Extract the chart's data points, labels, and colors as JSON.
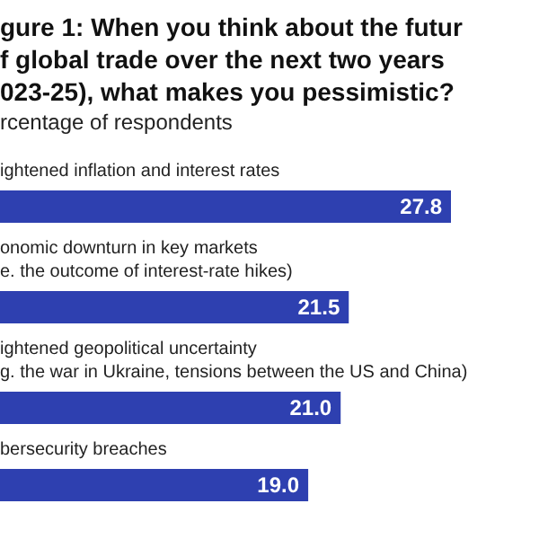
{
  "chart_data": {
    "type": "bar",
    "orientation": "horizontal",
    "title": "gure 1: When you think about the futur\nf global trade over the next two years\n023-25), what makes you pessimistic?",
    "subtitle": "rcentage of respondents",
    "categories": [
      "ightened inflation and interest rates",
      "onomic downturn in key markets\ne. the outcome of interest-rate hikes)",
      "ightened geopolitical uncertainty\ng. the war in Ukraine, tensions between the US and China)",
      "bersecurity breaches"
    ],
    "values": [
      27.8,
      21.5,
      21.0,
      19.0
    ],
    "value_labels": [
      "27.8",
      "21.5",
      "21.0",
      "19.0"
    ],
    "color": "#2e40b0"
  }
}
